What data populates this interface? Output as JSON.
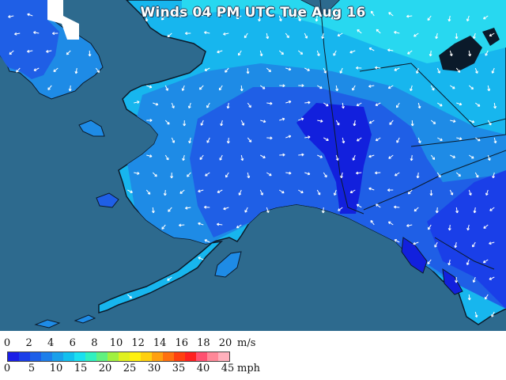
{
  "map": {
    "title": "Winds 04 PM UTC Tue Aug 16",
    "colors": {
      "ocean": "#2d6a8e",
      "land_calm": "#1f5fe6",
      "land_mid": "#1e8be6",
      "land_breezy": "#17b6ee",
      "land_windy": "#28d8f0",
      "core_calm": "#1a3fe8",
      "core_deep": "#1220dd",
      "no_data": "#ffffff",
      "arrow": "#ffffff",
      "border": "#1a1a2a"
    }
  },
  "legend": {
    "ms_unit": "m/s",
    "mph_unit": "mph",
    "ms_ticks": [
      "0",
      "2",
      "4",
      "6",
      "8",
      "10",
      "12",
      "14",
      "16",
      "18",
      "20"
    ],
    "mph_ticks": [
      "0",
      "5",
      "10",
      "15",
      "20",
      "25",
      "30",
      "35",
      "40",
      "45"
    ],
    "colors": [
      "#1a1ee6",
      "#1a3ee8",
      "#1e5fe8",
      "#1e7fea",
      "#1aa0ea",
      "#12c0ee",
      "#1ae0f0",
      "#30f0c0",
      "#60f080",
      "#a0f040",
      "#e0f020",
      "#fff010",
      "#ffd010",
      "#ffa010",
      "#ff7010",
      "#ff4010",
      "#ff2020",
      "#ff5070",
      "#ff8898",
      "#ffb0bc"
    ]
  }
}
